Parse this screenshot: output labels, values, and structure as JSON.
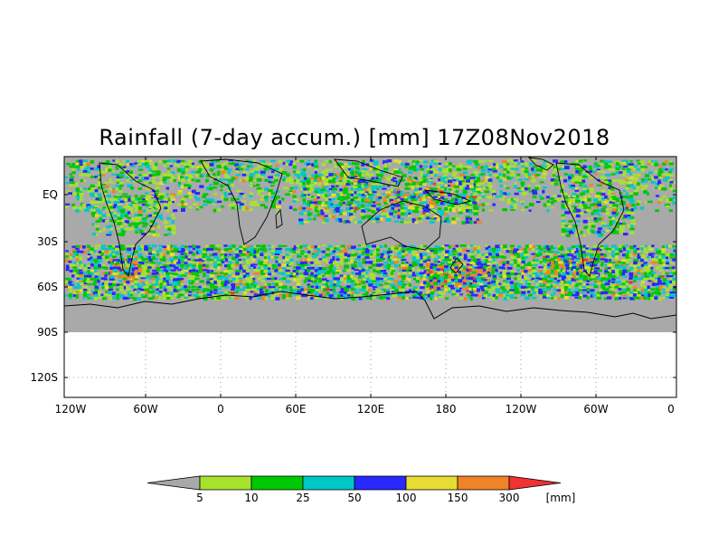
{
  "title": "Rainfall (7-day accum.) [mm] 17Z08Nov2018",
  "map": {
    "lat_labels": [
      "EQ",
      "30S",
      "60S",
      "90S",
      "120S"
    ],
    "lon_labels": [
      "120W",
      "60W",
      "0",
      "60E",
      "120E",
      "180",
      "120W",
      "60W",
      "0"
    ],
    "no_data_color": "#a9a9a9"
  },
  "colorbar": {
    "unit": "[mm]",
    "thresholds": [
      "5",
      "10",
      "25",
      "50",
      "100",
      "150",
      "300"
    ],
    "colors": [
      "#a9a9a9",
      "#a6e22e",
      "#00c800",
      "#00c8c8",
      "#2828ff",
      "#e6dc32",
      "#f08228",
      "#f03232"
    ]
  }
}
